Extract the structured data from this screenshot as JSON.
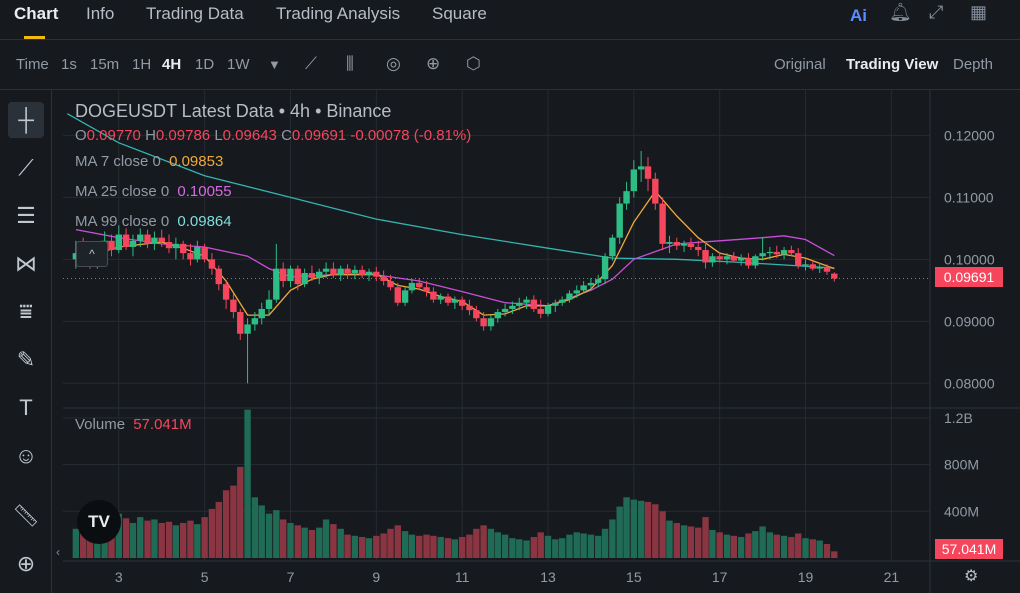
{
  "tabs": [
    {
      "label": "Chart",
      "active": true
    },
    {
      "label": "Info"
    },
    {
      "label": "Trading Data"
    },
    {
      "label": "Trading Analysis"
    },
    {
      "label": "Square"
    }
  ],
  "top_icons": {
    "ai": "Ai",
    "bell": "bell-icon",
    "expand": "expand-icon",
    "grid": "grid-icon"
  },
  "toolbar": {
    "time_label": "Time",
    "intervals": [
      "1s",
      "15m",
      "1H",
      "4H",
      "1D",
      "1W"
    ],
    "active_interval": "4H",
    "views": [
      "Original",
      "Trading View",
      "Depth"
    ],
    "active_view": "Trading View"
  },
  "legend": {
    "title": "DOGEUSDT Latest Data • 4h • Binance",
    "ohlc": {
      "o_label": "O",
      "o": "0.09770",
      "h_label": "H",
      "h": "0.09786",
      "l_label": "L",
      "l": "0.09643",
      "c_label": "C",
      "c": "0.09691",
      "change": "-0.00078 (-0.81%)"
    },
    "ma7": {
      "label": "MA 7 close 0",
      "value": "0.09853"
    },
    "ma25": {
      "label": "MA 25 close 0",
      "value": "0.10055"
    },
    "ma99": {
      "label": "MA 99 close 0",
      "value": "0.09864"
    }
  },
  "volume": {
    "label": "Volume",
    "value": "57.041M",
    "tag": "57.041M"
  },
  "last_price_tag": "0.09691",
  "logo_text": "TV",
  "colors": {
    "up": "#2ebd85",
    "down": "#f6465d",
    "ma7": "#f0a83a",
    "ma25": "#c84fd8",
    "ma99": "#35b3b0"
  },
  "chart_data": {
    "type": "candlestick",
    "price_axis_ticks": [
      "0.12000",
      "0.11000",
      "0.10000",
      "0.09000",
      "0.08000"
    ],
    "volume_axis_ticks": [
      "1.2B",
      "800M",
      "400M"
    ],
    "x_tick_labels": [
      "3",
      "5",
      "7",
      "9",
      "11",
      "13",
      "15",
      "17",
      "19",
      "21"
    ],
    "x_ticks": [
      3,
      5,
      7,
      9,
      11,
      13,
      15,
      17,
      19,
      21
    ],
    "price_range": [
      0.0765,
      0.127
    ],
    "volume_range": [
      0,
      1250
    ],
    "candles": [
      {
        "t": 2.0,
        "o": 0.1,
        "h": 0.103,
        "l": 0.0985,
        "c": 0.101,
        "v": 250
      },
      {
        "t": 2.17,
        "o": 0.101,
        "h": 0.1035,
        "l": 0.0995,
        "c": 0.1005,
        "v": 300
      },
      {
        "t": 2.33,
        "o": 0.1005,
        "h": 0.102,
        "l": 0.0985,
        "c": 0.0995,
        "v": 290
      },
      {
        "t": 2.5,
        "o": 0.0995,
        "h": 0.1015,
        "l": 0.0985,
        "c": 0.1008,
        "v": 320
      },
      {
        "t": 2.67,
        "o": 0.1008,
        "h": 0.1045,
        "l": 0.1,
        "c": 0.103,
        "v": 420
      },
      {
        "t": 2.83,
        "o": 0.103,
        "h": 0.104,
        "l": 0.1005,
        "c": 0.1015,
        "v": 310
      },
      {
        "t": 3.0,
        "o": 0.1015,
        "h": 0.1055,
        "l": 0.101,
        "c": 0.104,
        "v": 380
      },
      {
        "t": 3.17,
        "o": 0.104,
        "h": 0.105,
        "l": 0.1015,
        "c": 0.102,
        "v": 340
      },
      {
        "t": 3.33,
        "o": 0.102,
        "h": 0.104,
        "l": 0.1005,
        "c": 0.103,
        "v": 300
      },
      {
        "t": 3.5,
        "o": 0.103,
        "h": 0.105,
        "l": 0.102,
        "c": 0.104,
        "v": 350
      },
      {
        "t": 3.67,
        "o": 0.104,
        "h": 0.1048,
        "l": 0.1018,
        "c": 0.1025,
        "v": 320
      },
      {
        "t": 3.83,
        "o": 0.1025,
        "h": 0.1045,
        "l": 0.1015,
        "c": 0.1035,
        "v": 330
      },
      {
        "t": 4.0,
        "o": 0.1035,
        "h": 0.1048,
        "l": 0.102,
        "c": 0.1028,
        "v": 300
      },
      {
        "t": 4.17,
        "o": 0.1028,
        "h": 0.104,
        "l": 0.101,
        "c": 0.1018,
        "v": 310
      },
      {
        "t": 4.33,
        "o": 0.1018,
        "h": 0.1035,
        "l": 0.1,
        "c": 0.1025,
        "v": 280
      },
      {
        "t": 4.5,
        "o": 0.1025,
        "h": 0.103,
        "l": 0.1,
        "c": 0.101,
        "v": 300
      },
      {
        "t": 4.67,
        "o": 0.101,
        "h": 0.1025,
        "l": 0.099,
        "c": 0.1,
        "v": 320
      },
      {
        "t": 4.83,
        "o": 0.1,
        "h": 0.103,
        "l": 0.0995,
        "c": 0.102,
        "v": 290
      },
      {
        "t": 5.0,
        "o": 0.102,
        "h": 0.1025,
        "l": 0.0995,
        "c": 0.1,
        "v": 350
      },
      {
        "t": 5.17,
        "o": 0.1,
        "h": 0.101,
        "l": 0.0975,
        "c": 0.0985,
        "v": 420
      },
      {
        "t": 5.33,
        "o": 0.0985,
        "h": 0.099,
        "l": 0.095,
        "c": 0.096,
        "v": 480
      },
      {
        "t": 5.5,
        "o": 0.096,
        "h": 0.0965,
        "l": 0.092,
        "c": 0.0935,
        "v": 580
      },
      {
        "t": 5.67,
        "o": 0.0935,
        "h": 0.0945,
        "l": 0.0905,
        "c": 0.0915,
        "v": 620
      },
      {
        "t": 5.83,
        "o": 0.0915,
        "h": 0.092,
        "l": 0.087,
        "c": 0.088,
        "v": 780
      },
      {
        "t": 6.0,
        "o": 0.088,
        "h": 0.0905,
        "l": 0.08,
        "c": 0.0895,
        "v": 1270
      },
      {
        "t": 6.17,
        "o": 0.0895,
        "h": 0.0915,
        "l": 0.0885,
        "c": 0.0905,
        "v": 520
      },
      {
        "t": 6.33,
        "o": 0.0905,
        "h": 0.093,
        "l": 0.0895,
        "c": 0.092,
        "v": 450
      },
      {
        "t": 6.5,
        "o": 0.092,
        "h": 0.095,
        "l": 0.091,
        "c": 0.0935,
        "v": 380
      },
      {
        "t": 6.67,
        "o": 0.0935,
        "h": 0.1025,
        "l": 0.093,
        "c": 0.0985,
        "v": 410
      },
      {
        "t": 6.83,
        "o": 0.0985,
        "h": 0.0995,
        "l": 0.0955,
        "c": 0.0965,
        "v": 330
      },
      {
        "t": 7.0,
        "o": 0.0965,
        "h": 0.099,
        "l": 0.0955,
        "c": 0.0985,
        "v": 300
      },
      {
        "t": 7.17,
        "o": 0.0985,
        "h": 0.099,
        "l": 0.095,
        "c": 0.096,
        "v": 280
      },
      {
        "t": 7.33,
        "o": 0.096,
        "h": 0.0985,
        "l": 0.0955,
        "c": 0.0978,
        "v": 260
      },
      {
        "t": 7.5,
        "o": 0.0978,
        "h": 0.099,
        "l": 0.0965,
        "c": 0.097,
        "v": 240
      },
      {
        "t": 7.67,
        "o": 0.097,
        "h": 0.0985,
        "l": 0.096,
        "c": 0.098,
        "v": 260
      },
      {
        "t": 7.83,
        "o": 0.098,
        "h": 0.0995,
        "l": 0.097,
        "c": 0.0985,
        "v": 330
      },
      {
        "t": 8.0,
        "o": 0.0985,
        "h": 0.0995,
        "l": 0.097,
        "c": 0.0975,
        "v": 290
      },
      {
        "t": 8.17,
        "o": 0.0975,
        "h": 0.099,
        "l": 0.0965,
        "c": 0.0985,
        "v": 250
      },
      {
        "t": 8.33,
        "o": 0.0985,
        "h": 0.0992,
        "l": 0.097,
        "c": 0.0978,
        "v": 200
      },
      {
        "t": 8.5,
        "o": 0.0978,
        "h": 0.099,
        "l": 0.0968,
        "c": 0.0983,
        "v": 190
      },
      {
        "t": 8.67,
        "o": 0.0983,
        "h": 0.099,
        "l": 0.097,
        "c": 0.0975,
        "v": 180
      },
      {
        "t": 8.83,
        "o": 0.0975,
        "h": 0.0985,
        "l": 0.0965,
        "c": 0.098,
        "v": 170
      },
      {
        "t": 9.0,
        "o": 0.098,
        "h": 0.0988,
        "l": 0.0965,
        "c": 0.0972,
        "v": 190
      },
      {
        "t": 9.17,
        "o": 0.0972,
        "h": 0.0982,
        "l": 0.0958,
        "c": 0.0965,
        "v": 210
      },
      {
        "t": 9.33,
        "o": 0.0965,
        "h": 0.0975,
        "l": 0.095,
        "c": 0.0955,
        "v": 250
      },
      {
        "t": 9.5,
        "o": 0.0955,
        "h": 0.0962,
        "l": 0.0925,
        "c": 0.093,
        "v": 280
      },
      {
        "t": 9.67,
        "o": 0.093,
        "h": 0.0955,
        "l": 0.0925,
        "c": 0.095,
        "v": 230
      },
      {
        "t": 9.83,
        "o": 0.095,
        "h": 0.0968,
        "l": 0.0945,
        "c": 0.0962,
        "v": 200
      },
      {
        "t": 10.0,
        "o": 0.0962,
        "h": 0.097,
        "l": 0.095,
        "c": 0.0955,
        "v": 190
      },
      {
        "t": 10.17,
        "o": 0.0955,
        "h": 0.0965,
        "l": 0.094,
        "c": 0.0948,
        "v": 200
      },
      {
        "t": 10.33,
        "o": 0.0948,
        "h": 0.0955,
        "l": 0.093,
        "c": 0.0935,
        "v": 190
      },
      {
        "t": 10.5,
        "o": 0.0935,
        "h": 0.0945,
        "l": 0.0928,
        "c": 0.094,
        "v": 180
      },
      {
        "t": 10.67,
        "o": 0.094,
        "h": 0.0945,
        "l": 0.0925,
        "c": 0.093,
        "v": 170
      },
      {
        "t": 10.83,
        "o": 0.093,
        "h": 0.094,
        "l": 0.092,
        "c": 0.0935,
        "v": 160
      },
      {
        "t": 11.0,
        "o": 0.0935,
        "h": 0.094,
        "l": 0.0918,
        "c": 0.0925,
        "v": 180
      },
      {
        "t": 11.17,
        "o": 0.0925,
        "h": 0.0935,
        "l": 0.091,
        "c": 0.0918,
        "v": 200
      },
      {
        "t": 11.33,
        "o": 0.0918,
        "h": 0.0925,
        "l": 0.09,
        "c": 0.0905,
        "v": 250
      },
      {
        "t": 11.5,
        "o": 0.0905,
        "h": 0.0915,
        "l": 0.0885,
        "c": 0.0892,
        "v": 280
      },
      {
        "t": 11.67,
        "o": 0.0892,
        "h": 0.091,
        "l": 0.0885,
        "c": 0.0905,
        "v": 250
      },
      {
        "t": 11.83,
        "o": 0.0905,
        "h": 0.092,
        "l": 0.0898,
        "c": 0.0915,
        "v": 220
      },
      {
        "t": 12.0,
        "o": 0.0915,
        "h": 0.0928,
        "l": 0.0908,
        "c": 0.092,
        "v": 200
      },
      {
        "t": 12.17,
        "o": 0.092,
        "h": 0.0932,
        "l": 0.0912,
        "c": 0.0925,
        "v": 170
      },
      {
        "t": 12.33,
        "o": 0.0925,
        "h": 0.0938,
        "l": 0.0918,
        "c": 0.093,
        "v": 160
      },
      {
        "t": 12.5,
        "o": 0.093,
        "h": 0.094,
        "l": 0.092,
        "c": 0.0935,
        "v": 150
      },
      {
        "t": 12.67,
        "o": 0.0935,
        "h": 0.0942,
        "l": 0.0915,
        "c": 0.092,
        "v": 180
      },
      {
        "t": 12.83,
        "o": 0.092,
        "h": 0.0935,
        "l": 0.0905,
        "c": 0.0912,
        "v": 220
      },
      {
        "t": 13.0,
        "o": 0.0912,
        "h": 0.093,
        "l": 0.0908,
        "c": 0.0925,
        "v": 190
      },
      {
        "t": 13.17,
        "o": 0.0925,
        "h": 0.0935,
        "l": 0.0915,
        "c": 0.093,
        "v": 160
      },
      {
        "t": 13.33,
        "o": 0.093,
        "h": 0.094,
        "l": 0.0925,
        "c": 0.0935,
        "v": 170
      },
      {
        "t": 13.5,
        "o": 0.0935,
        "h": 0.095,
        "l": 0.093,
        "c": 0.0945,
        "v": 200
      },
      {
        "t": 13.67,
        "o": 0.0945,
        "h": 0.0958,
        "l": 0.0938,
        "c": 0.095,
        "v": 220
      },
      {
        "t": 13.83,
        "o": 0.095,
        "h": 0.0965,
        "l": 0.0945,
        "c": 0.0958,
        "v": 210
      },
      {
        "t": 14.0,
        "o": 0.0958,
        "h": 0.097,
        "l": 0.095,
        "c": 0.0962,
        "v": 200
      },
      {
        "t": 14.17,
        "o": 0.0962,
        "h": 0.0975,
        "l": 0.0955,
        "c": 0.0968,
        "v": 190
      },
      {
        "t": 14.33,
        "o": 0.0968,
        "h": 0.101,
        "l": 0.096,
        "c": 0.1005,
        "v": 250
      },
      {
        "t": 14.5,
        "o": 0.1005,
        "h": 0.104,
        "l": 0.0998,
        "c": 0.1035,
        "v": 330
      },
      {
        "t": 14.67,
        "o": 0.1035,
        "h": 0.11,
        "l": 0.1025,
        "c": 0.109,
        "v": 440
      },
      {
        "t": 14.83,
        "o": 0.109,
        "h": 0.1125,
        "l": 0.108,
        "c": 0.111,
        "v": 520
      },
      {
        "t": 15.0,
        "o": 0.111,
        "h": 0.116,
        "l": 0.11,
        "c": 0.1145,
        "v": 500
      },
      {
        "t": 15.17,
        "o": 0.1145,
        "h": 0.1175,
        "l": 0.1125,
        "c": 0.115,
        "v": 490
      },
      {
        "t": 15.33,
        "o": 0.115,
        "h": 0.1165,
        "l": 0.111,
        "c": 0.113,
        "v": 480
      },
      {
        "t": 15.5,
        "o": 0.113,
        "h": 0.114,
        "l": 0.108,
        "c": 0.109,
        "v": 460
      },
      {
        "t": 15.67,
        "o": 0.109,
        "h": 0.11,
        "l": 0.1015,
        "c": 0.1025,
        "v": 400
      },
      {
        "t": 15.83,
        "o": 0.1025,
        "h": 0.1038,
        "l": 0.101,
        "c": 0.1028,
        "v": 320
      },
      {
        "t": 16.0,
        "o": 0.1028,
        "h": 0.1035,
        "l": 0.1015,
        "c": 0.1022,
        "v": 300
      },
      {
        "t": 16.17,
        "o": 0.1022,
        "h": 0.103,
        "l": 0.1012,
        "c": 0.1025,
        "v": 280
      },
      {
        "t": 16.33,
        "o": 0.1025,
        "h": 0.1035,
        "l": 0.1015,
        "c": 0.102,
        "v": 270
      },
      {
        "t": 16.5,
        "o": 0.102,
        "h": 0.103,
        "l": 0.1005,
        "c": 0.1015,
        "v": 260
      },
      {
        "t": 16.67,
        "o": 0.1015,
        "h": 0.1028,
        "l": 0.0985,
        "c": 0.0995,
        "v": 350
      },
      {
        "t": 16.83,
        "o": 0.0995,
        "h": 0.101,
        "l": 0.0988,
        "c": 0.1005,
        "v": 240
      },
      {
        "t": 17.0,
        "o": 0.1005,
        "h": 0.1012,
        "l": 0.0995,
        "c": 0.1,
        "v": 220
      },
      {
        "t": 17.17,
        "o": 0.1,
        "h": 0.101,
        "l": 0.0992,
        "c": 0.1005,
        "v": 200
      },
      {
        "t": 17.33,
        "o": 0.1005,
        "h": 0.1012,
        "l": 0.0995,
        "c": 0.0998,
        "v": 190
      },
      {
        "t": 17.5,
        "o": 0.0998,
        "h": 0.1008,
        "l": 0.099,
        "c": 0.1002,
        "v": 180
      },
      {
        "t": 17.67,
        "o": 0.1002,
        "h": 0.101,
        "l": 0.0985,
        "c": 0.099,
        "v": 210
      },
      {
        "t": 17.83,
        "o": 0.099,
        "h": 0.1008,
        "l": 0.0985,
        "c": 0.1005,
        "v": 230
      },
      {
        "t": 18.0,
        "o": 0.1005,
        "h": 0.1035,
        "l": 0.0998,
        "c": 0.101,
        "v": 270
      },
      {
        "t": 18.17,
        "o": 0.101,
        "h": 0.102,
        "l": 0.1,
        "c": 0.1012,
        "v": 220
      },
      {
        "t": 18.33,
        "o": 0.1012,
        "h": 0.1022,
        "l": 0.1002,
        "c": 0.1008,
        "v": 200
      },
      {
        "t": 18.5,
        "o": 0.1008,
        "h": 0.102,
        "l": 0.1,
        "c": 0.1015,
        "v": 190
      },
      {
        "t": 18.67,
        "o": 0.1015,
        "h": 0.1022,
        "l": 0.1005,
        "c": 0.101,
        "v": 180
      },
      {
        "t": 18.83,
        "o": 0.101,
        "h": 0.1018,
        "l": 0.0985,
        "c": 0.099,
        "v": 210
      },
      {
        "t": 19.0,
        "o": 0.099,
        "h": 0.1,
        "l": 0.0982,
        "c": 0.0992,
        "v": 170
      },
      {
        "t": 19.17,
        "o": 0.0992,
        "h": 0.0998,
        "l": 0.0982,
        "c": 0.0985,
        "v": 160
      },
      {
        "t": 19.33,
        "o": 0.0985,
        "h": 0.0995,
        "l": 0.0978,
        "c": 0.0988,
        "v": 150
      },
      {
        "t": 19.5,
        "o": 0.0988,
        "h": 0.0992,
        "l": 0.0975,
        "c": 0.098,
        "v": 120
      },
      {
        "t": 19.67,
        "o": 0.0977,
        "h": 0.0979,
        "l": 0.0964,
        "c": 0.0969,
        "v": 57
      }
    ],
    "ma7": [
      [
        2.0,
        0.1
      ],
      [
        3.0,
        0.102
      ],
      [
        4.0,
        0.1028
      ],
      [
        4.5,
        0.1018
      ],
      [
        5.0,
        0.1005
      ],
      [
        5.5,
        0.0965
      ],
      [
        6.0,
        0.091
      ],
      [
        6.5,
        0.091
      ],
      [
        7.0,
        0.095
      ],
      [
        7.5,
        0.0968
      ],
      [
        8.0,
        0.0976
      ],
      [
        9.0,
        0.0976
      ],
      [
        9.5,
        0.0958
      ],
      [
        10.0,
        0.0952
      ],
      [
        10.5,
        0.094
      ],
      [
        11.0,
        0.0932
      ],
      [
        11.5,
        0.091
      ],
      [
        12.0,
        0.0912
      ],
      [
        12.5,
        0.0925
      ],
      [
        13.0,
        0.0925
      ],
      [
        13.5,
        0.0935
      ],
      [
        14.0,
        0.0952
      ],
      [
        14.5,
        0.099
      ],
      [
        15.0,
        0.106
      ],
      [
        15.5,
        0.111
      ],
      [
        16.0,
        0.107
      ],
      [
        16.5,
        0.1035
      ],
      [
        17.0,
        0.101
      ],
      [
        17.5,
        0.1002
      ],
      [
        18.0,
        0.1
      ],
      [
        18.5,
        0.1008
      ],
      [
        19.0,
        0.1002
      ],
      [
        19.67,
        0.0985
      ]
    ],
    "ma25": [
      [
        2.0,
        0.1048
      ],
      [
        3.0,
        0.1035
      ],
      [
        4.0,
        0.1025
      ],
      [
        5.0,
        0.102
      ],
      [
        6.0,
        0.1005
      ],
      [
        6.5,
        0.0985
      ],
      [
        7.0,
        0.0972
      ],
      [
        8.0,
        0.0975
      ],
      [
        9.0,
        0.0975
      ],
      [
        10.0,
        0.0965
      ],
      [
        11.0,
        0.0948
      ],
      [
        12.0,
        0.093
      ],
      [
        13.0,
        0.0925
      ],
      [
        14.0,
        0.095
      ],
      [
        14.5,
        0.0968
      ],
      [
        15.0,
        0.1
      ],
      [
        16.0,
        0.1025
      ],
      [
        17.0,
        0.103
      ],
      [
        18.0,
        0.1035
      ],
      [
        18.5,
        0.1038
      ],
      [
        19.0,
        0.1032
      ],
      [
        19.67,
        0.1006
      ]
    ],
    "ma99": [
      [
        1.8,
        0.1235
      ],
      [
        3.0,
        0.1188
      ],
      [
        5.0,
        0.1135
      ],
      [
        7.0,
        0.11
      ],
      [
        9.0,
        0.1065
      ],
      [
        11.0,
        0.104
      ],
      [
        13.0,
        0.1018
      ],
      [
        14.5,
        0.1002
      ],
      [
        16.0,
        0.1
      ],
      [
        17.5,
        0.0995
      ],
      [
        19.67,
        0.0986
      ]
    ]
  }
}
